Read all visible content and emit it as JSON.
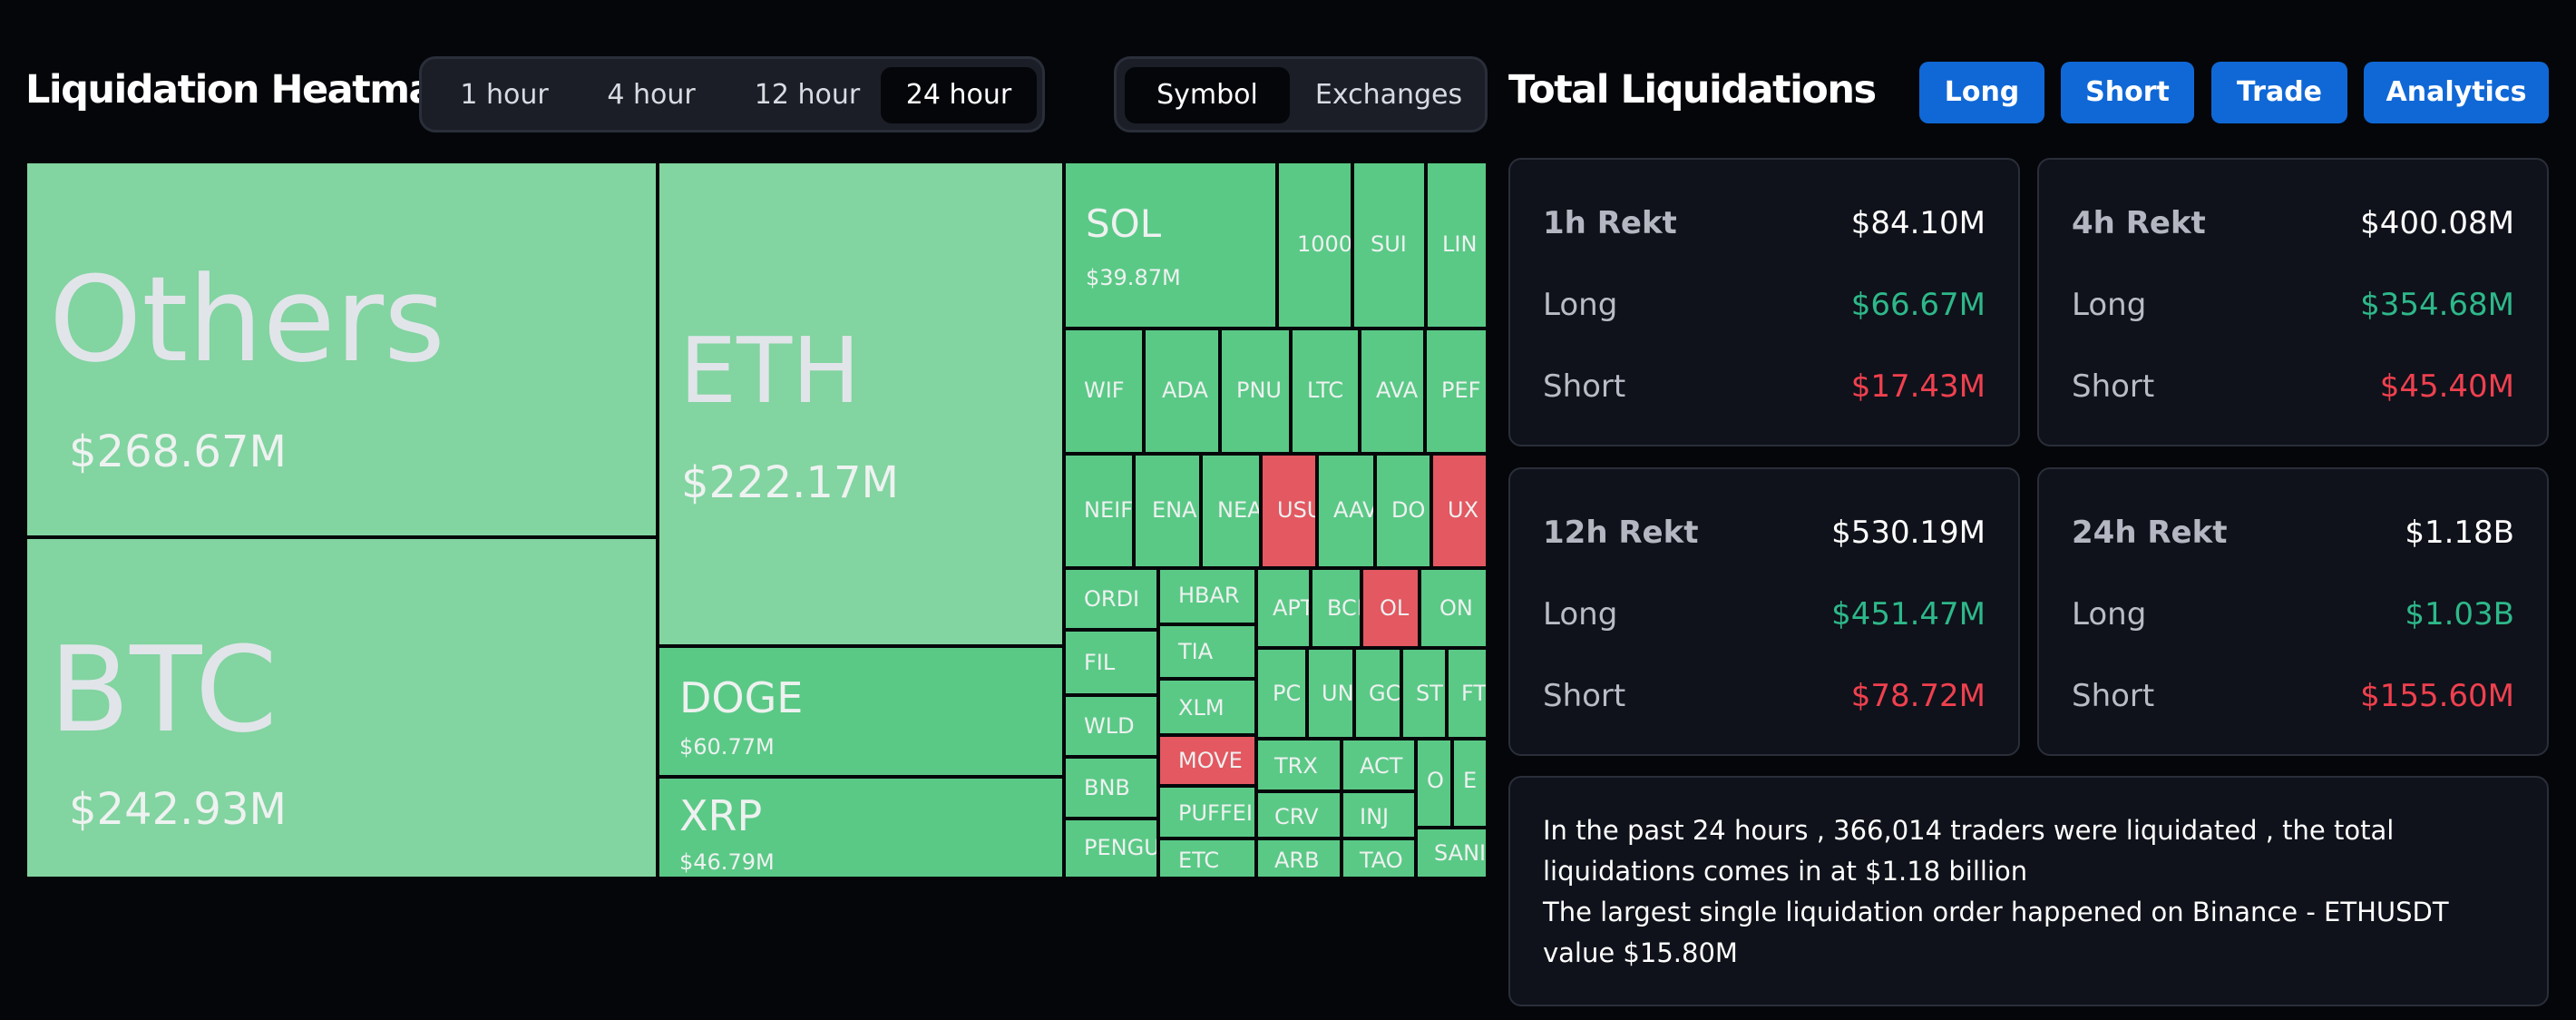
{
  "heatmap": {
    "title": "Liquidation Heatmap",
    "time_tabs": [
      "1 hour",
      "4 hour",
      "12 hour",
      "24 hour"
    ],
    "active_time_tab": 3,
    "view_tabs": [
      "Symbol",
      "Exchanges"
    ],
    "active_view_tab": 0
  },
  "total": {
    "title": "Total Liquidations",
    "buttons": [
      "Long",
      "Short",
      "Trade",
      "Analytics"
    ]
  },
  "colors": {
    "tile_light": "#82d4a0",
    "tile_green": "#5ac986",
    "tile_red": "#e35861",
    "accent_blue": "#1068d6",
    "long_green": "#2eb88a",
    "short_red": "#f0404f"
  },
  "treemap_tiles": [
    {
      "symbol": "Others",
      "value": "$268.67M",
      "side": "long"
    },
    {
      "symbol": "BTC",
      "value": "$242.93M",
      "side": "long"
    },
    {
      "symbol": "ETH",
      "value": "$222.17M",
      "side": "long"
    },
    {
      "symbol": "DOGE",
      "value": "$60.77M",
      "side": "long"
    },
    {
      "symbol": "XRP",
      "value": "$46.79M",
      "side": "long"
    },
    {
      "symbol": "SOL",
      "value": "$39.87M",
      "side": "long"
    },
    {
      "symbol": "1000",
      "side": "long"
    },
    {
      "symbol": "SUI",
      "side": "long"
    },
    {
      "symbol": "LIN",
      "side": "long"
    },
    {
      "symbol": "WIF",
      "side": "long"
    },
    {
      "symbol": "ADA",
      "side": "long"
    },
    {
      "symbol": "PNU",
      "side": "long"
    },
    {
      "symbol": "LTC",
      "side": "long"
    },
    {
      "symbol": "AVA",
      "side": "long"
    },
    {
      "symbol": "PEF",
      "side": "long"
    },
    {
      "symbol": "NEIF",
      "side": "long"
    },
    {
      "symbol": "ENA",
      "side": "long"
    },
    {
      "symbol": "NEA",
      "side": "long"
    },
    {
      "symbol": "USU",
      "side": "short"
    },
    {
      "symbol": "AAV",
      "side": "long"
    },
    {
      "symbol": "DO",
      "side": "long"
    },
    {
      "symbol": "UX",
      "side": "short"
    },
    {
      "symbol": "ORDI",
      "side": "long"
    },
    {
      "symbol": "HBAR",
      "side": "long"
    },
    {
      "symbol": "APT",
      "side": "long"
    },
    {
      "symbol": "BCI",
      "side": "long"
    },
    {
      "symbol": "OL",
      "side": "short"
    },
    {
      "symbol": "ON",
      "side": "long"
    },
    {
      "symbol": "FIL",
      "side": "long"
    },
    {
      "symbol": "TIA",
      "side": "long"
    },
    {
      "symbol": "XLM",
      "side": "long"
    },
    {
      "symbol": "PC",
      "side": "long"
    },
    {
      "symbol": "UN",
      "side": "long"
    },
    {
      "symbol": "GC",
      "side": "long"
    },
    {
      "symbol": "ST",
      "side": "long"
    },
    {
      "symbol": "FT",
      "side": "long"
    },
    {
      "symbol": "WLD",
      "side": "long"
    },
    {
      "symbol": "MOVE",
      "side": "short"
    },
    {
      "symbol": "TRX",
      "side": "long"
    },
    {
      "symbol": "ACT",
      "side": "long"
    },
    {
      "symbol": "O",
      "side": "long"
    },
    {
      "symbol": "E",
      "side": "long"
    },
    {
      "symbol": "BNB",
      "side": "long"
    },
    {
      "symbol": "PUFFEI",
      "side": "long"
    },
    {
      "symbol": "CRV",
      "side": "long"
    },
    {
      "symbol": "INJ",
      "side": "long"
    },
    {
      "symbol": "PENGU",
      "side": "long"
    },
    {
      "symbol": "ETC",
      "side": "long"
    },
    {
      "symbol": "ARB",
      "side": "long"
    },
    {
      "symbol": "TAO",
      "side": "long"
    },
    {
      "symbol": "SANI",
      "side": "long"
    }
  ],
  "cards": [
    {
      "title": "1h Rekt",
      "total": "$84.10M",
      "long_label": "Long",
      "long": "$66.67M",
      "short_label": "Short",
      "short": "$17.43M"
    },
    {
      "title": "4h Rekt",
      "total": "$400.08M",
      "long_label": "Long",
      "long": "$354.68M",
      "short_label": "Short",
      "short": "$45.40M"
    },
    {
      "title": "12h Rekt",
      "total": "$530.19M",
      "long_label": "Long",
      "long": "$451.47M",
      "short_label": "Short",
      "short": "$78.72M"
    },
    {
      "title": "24h Rekt",
      "total": "$1.18B",
      "long_label": "Long",
      "long": "$1.03B",
      "short_label": "Short",
      "short": "$155.60M"
    }
  ],
  "summary": {
    "line1": "In the past 24 hours , 366,014 traders were liquidated , the total liquidations comes in at $1.18 billion",
    "line2": "The largest single liquidation order happened on Binance - ETHUSDT value $15.80M"
  }
}
